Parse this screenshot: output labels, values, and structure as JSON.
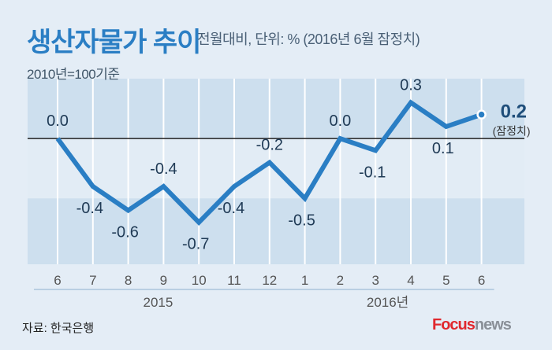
{
  "title": "생산자물가 추이",
  "subtitle": "전월대비, 단위: % (2016년 6월 잠정치)",
  "base_note": "2010년=100기준",
  "source": "자료: 한국은행",
  "logo": {
    "part1": "Focus",
    "part2": "news"
  },
  "colors": {
    "line": "#2a7ec4",
    "title": "#2a7ec4",
    "band": "#cddfee",
    "background": "#e4edf6"
  },
  "chart_data": {
    "type": "line",
    "categories": [
      "6",
      "7",
      "8",
      "9",
      "10",
      "11",
      "12",
      "1",
      "2",
      "3",
      "4",
      "5",
      "6"
    ],
    "year_groups": [
      {
        "label": "2015",
        "from": 0,
        "to": 6
      },
      {
        "label": "2016년",
        "from": 7,
        "to": 12
      }
    ],
    "values": [
      0.0,
      -0.4,
      -0.6,
      -0.4,
      -0.7,
      -0.4,
      -0.2,
      -0.5,
      0.0,
      -0.1,
      0.3,
      0.1,
      0.2
    ],
    "data_labels": [
      "0.0",
      "-0.4",
      "-0.6",
      "-0.4",
      "-0.7",
      "-0.4",
      "-0.2",
      "-0.5",
      "0.0",
      "-0.1",
      "0.3",
      "0.1",
      "0.2"
    ],
    "last_point_note": "(잠정치)",
    "ylim": [
      -1.05,
      0.5
    ],
    "zero_line": true,
    "xlabel": "",
    "ylabel": ""
  }
}
